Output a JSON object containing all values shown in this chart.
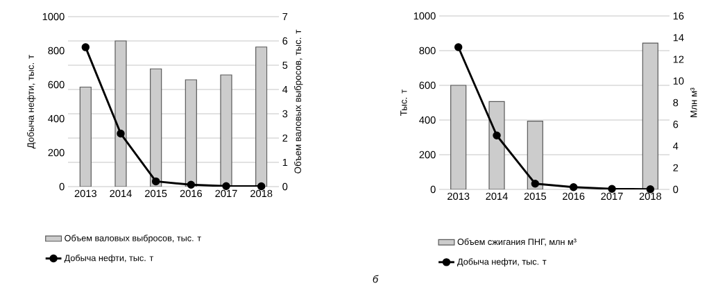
{
  "chart_data": [
    {
      "type": "bar",
      "categories": [
        "2013",
        "2014",
        "2015",
        "2016",
        "2017",
        "2018"
      ],
      "ylabel": "Добыча нефти, тыс. т",
      "y2label": "Объем валовых выбросов, тыс. т",
      "ylim": [
        0,
        1000
      ],
      "yticks": [
        0,
        200,
        400,
        600,
        800,
        1000
      ],
      "y2lim": [
        0,
        7
      ],
      "y2ticks": [
        0,
        1,
        2,
        3,
        4,
        5,
        6,
        7
      ],
      "grid": "y2",
      "legend": "bottom",
      "marker": "circle",
      "line_style": "solid",
      "series": [
        {
          "name": "Объем валовых выбросов, тыс. т",
          "axis": "y2",
          "color": "#cccccc",
          "values": [
            4.1,
            6.0,
            4.85,
            4.4,
            4.6,
            5.75
          ]
        },
        {
          "name": "Добыча нефти, тыс. т",
          "type": "line",
          "axis": "y",
          "color": "#000000",
          "values": [
            820,
            312,
            31,
            11,
            3,
            2
          ]
        }
      ]
    },
    {
      "type": "bar",
      "categories": [
        "2013",
        "2014",
        "2015",
        "2016",
        "2017",
        "2018"
      ],
      "ylabel": "Тыс. т",
      "y2label": "Млн м³",
      "ylim": [
        0,
        1000
      ],
      "yticks": [
        0,
        200,
        400,
        600,
        800,
        1000
      ],
      "y2lim": [
        0,
        16
      ],
      "y2ticks": [
        0,
        2,
        4,
        6,
        8,
        10,
        12,
        14,
        16
      ],
      "grid": "y",
      "legend": "bottom",
      "marker": "circle",
      "line_style": "solid",
      "annotations": [
        "б"
      ],
      "series": [
        {
          "name": "Объем сжигания ПНГ, млн м³",
          "axis": "y2",
          "color": "#cccccc",
          "values": [
            9.6,
            8.1,
            6.3,
            null,
            null,
            13.5
          ]
        },
        {
          "name": "Добыча нефти, тыс. т",
          "type": "line",
          "axis": "y",
          "color": "#000000",
          "values": [
            820,
            311,
            33,
            13,
            3,
            1
          ]
        }
      ]
    }
  ]
}
